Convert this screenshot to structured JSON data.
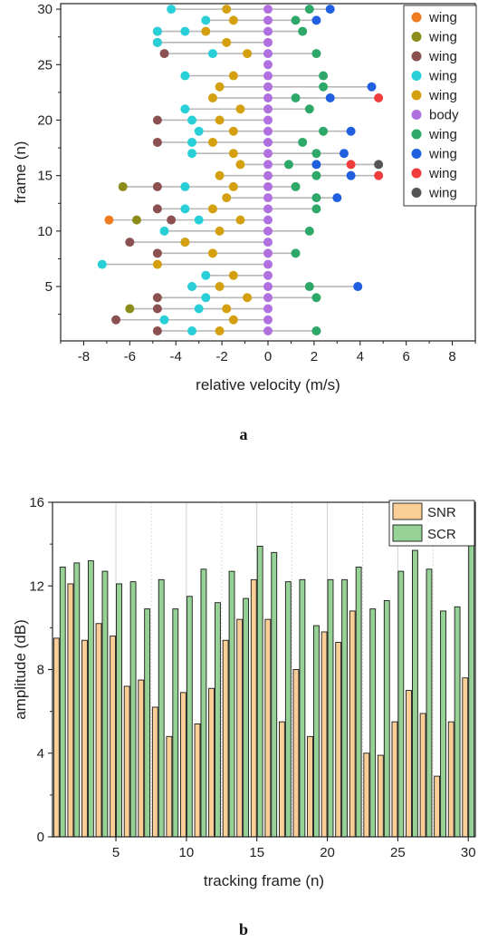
{
  "figure_labels": [
    "a",
    "b"
  ],
  "chart_data": [
    {
      "type": "scatter",
      "style": "lollipop",
      "xlabel": "relative velocity (m/s)",
      "ylabel": "frame (n)",
      "xlim": [
        -9,
        9
      ],
      "ylim": [
        0.1,
        30.5
      ],
      "xticks": [
        -8,
        -6,
        -4,
        -2,
        0,
        2,
        4,
        6,
        8
      ],
      "yticks": [
        5,
        10,
        15,
        20,
        25,
        30
      ],
      "legend_position": "top-right",
      "series": [
        {
          "name": "wing",
          "color": "#f07a1e",
          "points": [
            [
              -6.9,
              11
            ]
          ]
        },
        {
          "name": "wing",
          "color": "#8c8c1a",
          "points": [
            [
              -6.0,
              3
            ],
            [
              -5.7,
              11
            ],
            [
              -6.3,
              14
            ]
          ]
        },
        {
          "name": "wing",
          "color": "#8b5050",
          "points": [
            [
              -4.8,
              1
            ],
            [
              -6.6,
              2
            ],
            [
              -4.8,
              3
            ],
            [
              -4.8,
              4
            ],
            [
              -4.8,
              8
            ],
            [
              -6.0,
              9
            ],
            [
              -4.2,
              11
            ],
            [
              -4.8,
              12
            ],
            [
              -4.8,
              14
            ],
            [
              -4.8,
              18
            ],
            [
              -4.8,
              20
            ],
            [
              -4.5,
              26
            ],
            [
              -4.8,
              27
            ],
            [
              -4.8,
              28
            ]
          ]
        },
        {
          "name": "wing",
          "color": "#29cfd6",
          "points": [
            [
              -3.3,
              1
            ],
            [
              -4.5,
              2
            ],
            [
              -3.0,
              3
            ],
            [
              -2.7,
              4
            ],
            [
              -3.3,
              5
            ],
            [
              -2.7,
              6
            ],
            [
              -7.2,
              7
            ],
            [
              -3.6,
              9
            ],
            [
              -4.5,
              10
            ],
            [
              -3.0,
              11
            ],
            [
              -3.6,
              12
            ],
            [
              -3.6,
              14
            ],
            [
              -3.3,
              17
            ],
            [
              -3.3,
              18
            ],
            [
              -3.0,
              19
            ],
            [
              -3.3,
              20
            ],
            [
              -3.6,
              21
            ],
            [
              -3.6,
              24
            ],
            [
              -2.4,
              26
            ],
            [
              -4.8,
              27
            ],
            [
              -3.6,
              28
            ],
            [
              -4.8,
              28
            ],
            [
              -2.7,
              29
            ],
            [
              -4.2,
              30
            ]
          ]
        },
        {
          "name": "wing",
          "color": "#d4a010",
          "points": [
            [
              -2.1,
              1
            ],
            [
              -1.5,
              2
            ],
            [
              -1.8,
              3
            ],
            [
              -0.9,
              4
            ],
            [
              -2.1,
              5
            ],
            [
              -1.5,
              6
            ],
            [
              -4.8,
              7
            ],
            [
              -2.4,
              8
            ],
            [
              -3.6,
              9
            ],
            [
              -2.1,
              10
            ],
            [
              -1.2,
              11
            ],
            [
              -2.4,
              12
            ],
            [
              -1.8,
              13
            ],
            [
              -1.5,
              14
            ],
            [
              -2.1,
              15
            ],
            [
              -1.2,
              16
            ],
            [
              -1.5,
              17
            ],
            [
              -2.4,
              18
            ],
            [
              -1.5,
              19
            ],
            [
              -2.1,
              20
            ],
            [
              -1.2,
              21
            ],
            [
              -2.4,
              22
            ],
            [
              -2.1,
              23
            ],
            [
              -1.5,
              24
            ],
            [
              -0.9,
              26
            ],
            [
              -1.8,
              27
            ],
            [
              -2.7,
              28
            ],
            [
              -1.5,
              29
            ],
            [
              -1.8,
              30
            ]
          ]
        },
        {
          "name": "body",
          "color": "#b070e0",
          "points": [
            [
              0,
              1
            ],
            [
              0,
              2
            ],
            [
              0,
              3
            ],
            [
              0,
              4
            ],
            [
              0,
              5
            ],
            [
              0,
              6
            ],
            [
              0,
              7
            ],
            [
              0,
              8
            ],
            [
              0,
              9
            ],
            [
              0,
              10
            ],
            [
              0,
              11
            ],
            [
              0,
              12
            ],
            [
              0,
              13
            ],
            [
              0,
              14
            ],
            [
              0,
              15
            ],
            [
              0,
              16
            ],
            [
              0,
              17
            ],
            [
              0,
              18
            ],
            [
              0,
              19
            ],
            [
              0,
              20
            ],
            [
              0,
              21
            ],
            [
              0,
              22
            ],
            [
              0,
              23
            ],
            [
              0,
              24
            ],
            [
              0,
              25
            ],
            [
              0,
              26
            ],
            [
              0,
              27
            ],
            [
              0,
              28
            ],
            [
              0,
              29
            ],
            [
              0,
              30
            ]
          ]
        },
        {
          "name": "wing",
          "color": "#2ea868",
          "points": [
            [
              2.1,
              1
            ],
            [
              2.1,
              4
            ],
            [
              1.8,
              5
            ],
            [
              1.2,
              8
            ],
            [
              1.8,
              10
            ],
            [
              2.1,
              12
            ],
            [
              2.1,
              13
            ],
            [
              1.2,
              14
            ],
            [
              2.1,
              15
            ],
            [
              0.9,
              16
            ],
            [
              2.1,
              17
            ],
            [
              1.5,
              18
            ],
            [
              2.4,
              19
            ],
            [
              1.8,
              21
            ],
            [
              1.2,
              22
            ],
            [
              2.4,
              23
            ],
            [
              2.4,
              24
            ],
            [
              2.1,
              26
            ],
            [
              1.5,
              28
            ],
            [
              1.2,
              29
            ],
            [
              1.8,
              30
            ]
          ]
        },
        {
          "name": "wing",
          "color": "#2060e0",
          "points": [
            [
              3.9,
              5
            ],
            [
              3.0,
              13
            ],
            [
              3.6,
              15
            ],
            [
              2.1,
              16
            ],
            [
              3.3,
              17
            ],
            [
              3.6,
              19
            ],
            [
              2.7,
              22
            ],
            [
              4.5,
              23
            ],
            [
              2.1,
              29
            ],
            [
              2.7,
              30
            ]
          ]
        },
        {
          "name": "wing",
          "color": "#f03c3c",
          "points": [
            [
              4.8,
              15
            ],
            [
              3.6,
              16
            ],
            [
              4.8,
              22
            ]
          ]
        },
        {
          "name": "wing",
          "color": "#555555",
          "points": [
            [
              4.8,
              16
            ]
          ]
        }
      ]
    },
    {
      "type": "bar",
      "xlabel": "tracking frame (n)",
      "ylabel": "amplitude (dB)",
      "xlim": [
        0.5,
        30.5
      ],
      "ylim": [
        0,
        16
      ],
      "xticks": [
        5,
        10,
        15,
        20,
        25,
        30
      ],
      "yticks": [
        0,
        4,
        8,
        12,
        16
      ],
      "legend_position": "top-right",
      "categories": [
        1,
        2,
        3,
        4,
        5,
        6,
        7,
        8,
        9,
        10,
        11,
        12,
        13,
        14,
        15,
        16,
        17,
        18,
        19,
        20,
        21,
        22,
        23,
        24,
        25,
        26,
        27,
        28,
        29,
        30
      ],
      "series": [
        {
          "name": "SNR",
          "color": "#f9cf97",
          "values": [
            9.5,
            12.1,
            9.4,
            10.2,
            9.6,
            7.2,
            7.5,
            6.2,
            4.8,
            6.9,
            5.4,
            7.1,
            9.4,
            10.4,
            12.3,
            10.4,
            5.5,
            8.0,
            4.8,
            9.8,
            9.3,
            10.8,
            4.0,
            3.9,
            5.5,
            7.0,
            5.9,
            2.9,
            5.5,
            7.6
          ]
        },
        {
          "name": "SCR",
          "color": "#96d296",
          "values": [
            12.9,
            13.1,
            13.2,
            12.7,
            12.1,
            12.2,
            10.9,
            12.3,
            10.9,
            11.5,
            12.8,
            11.2,
            12.7,
            11.4,
            13.9,
            13.6,
            12.2,
            12.3,
            10.1,
            12.3,
            12.3,
            12.9,
            10.9,
            11.3,
            12.7,
            13.7,
            12.8,
            10.8,
            11.0,
            14.5
          ]
        }
      ]
    }
  ]
}
